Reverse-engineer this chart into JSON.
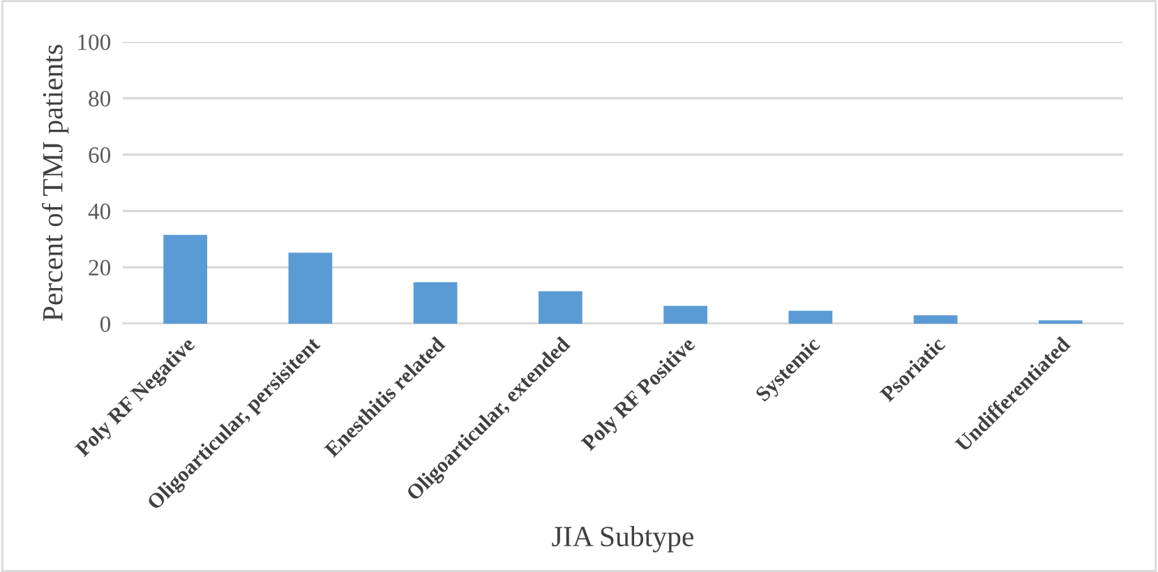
{
  "chart_data": {
    "type": "bar",
    "xlabel": "JIA Subtype",
    "ylabel": "Percent of TMJ patients",
    "categories": [
      "Poly RF Negative",
      "Oligoarticular, persisitent",
      "Enesthitis related",
      "Oligoarticular, extended",
      "Poly RF Positive",
      "Systemic",
      "Psoriatic",
      "Undifferentiated"
    ],
    "values": [
      31.5,
      25.2,
      14.7,
      11.5,
      6.3,
      4.6,
      3.0,
      1.2
    ],
    "color": "#5b9bd5",
    "ylim": [
      0,
      100
    ],
    "yticks": [
      0,
      20,
      40,
      60,
      80,
      100
    ],
    "grid": "y"
  }
}
